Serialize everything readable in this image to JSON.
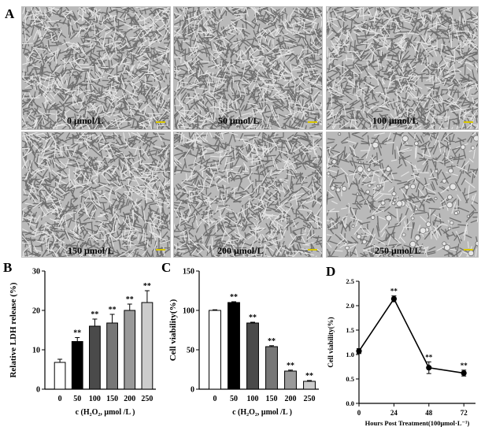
{
  "panels": {
    "a": "A",
    "b": "B",
    "c": "C",
    "d": "D"
  },
  "micrographs": [
    {
      "label": "0 μmol/L",
      "density": 1.0
    },
    {
      "label": "50 μmol/L",
      "density": 0.98
    },
    {
      "label": "100 μmol/L",
      "density": 0.93
    },
    {
      "label": "150 μmol/L",
      "density": 0.97
    },
    {
      "label": "200 μmol/L",
      "density": 0.85
    },
    {
      "label": "250 μmol/L",
      "density": 0.45
    }
  ],
  "colors": {
    "scale_bar": "#d8c600",
    "micro_bg": "#b9b9b9",
    "micro_dark": "#6f6f6f",
    "micro_light": "#e6e6e6"
  },
  "chart_data": [
    {
      "id": "B",
      "type": "bar",
      "ylabel": "Relative LDH release (%)",
      "xlabel": "c (H₂O₂, μmol /L )",
      "categories": [
        "0",
        "50",
        "100",
        "150",
        "200",
        "250"
      ],
      "values": [
        6.8,
        12.1,
        16.0,
        16.8,
        20.0,
        22.0
      ],
      "errors": [
        0.8,
        1.0,
        1.8,
        2.2,
        1.6,
        3.0
      ],
      "significance": [
        "",
        "**",
        "**",
        "**",
        "**",
        "**"
      ],
      "fills": [
        "#ffffff",
        "#000000",
        "#4a4a4a",
        "#777777",
        "#9a9a9a",
        "#cccccc"
      ],
      "ylim": [
        0,
        30
      ],
      "yticks": [
        "0",
        "10",
        "20",
        "30"
      ]
    },
    {
      "id": "C",
      "type": "bar",
      "ylabel": "Cell viability(%)",
      "xlabel": "c (H₂O₂, μmol /L )",
      "categories": [
        "0",
        "50",
        "100",
        "150",
        "200",
        "250"
      ],
      "values": [
        100,
        110,
        84,
        54,
        23,
        10
      ],
      "errors": [
        0.8,
        1.0,
        1.0,
        1.2,
        1.2,
        1.0
      ],
      "significance": [
        "",
        "**",
        "**",
        "**",
        "**",
        "**"
      ],
      "fills": [
        "#ffffff",
        "#000000",
        "#4a4a4a",
        "#777777",
        "#9a9a9a",
        "#cccccc"
      ],
      "ylim": [
        0,
        150
      ],
      "yticks": [
        "0",
        "50",
        "100",
        "150"
      ]
    },
    {
      "id": "D",
      "type": "line",
      "ylabel": "Cell viability(%)",
      "xlabel": "Hours Post Treatment(100μmol·L⁻¹)",
      "x": [
        0,
        24,
        48,
        72
      ],
      "values": [
        1.07,
        2.14,
        0.73,
        0.62
      ],
      "errors": [
        0.05,
        0.06,
        0.12,
        0.06
      ],
      "significance": [
        "",
        "**",
        "**",
        "**"
      ],
      "xlim": [
        0,
        80
      ],
      "ylim": [
        0,
        2.5
      ],
      "xticks": [
        "0",
        "24",
        "48",
        "72"
      ],
      "yticks": [
        "0.0",
        "0.5",
        "1.0",
        "1.5",
        "2.0",
        "2.5"
      ]
    }
  ]
}
